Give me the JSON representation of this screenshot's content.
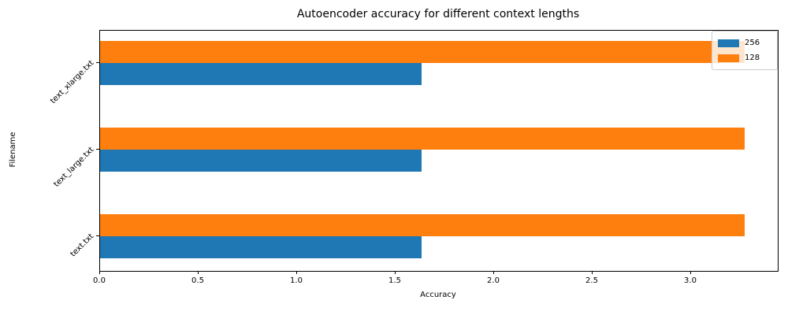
{
  "title": "Autoencoder accuracy for different context lengths",
  "chart_data": {
    "type": "bar",
    "orientation": "horizontal",
    "title": "Autoencoder accuracy for different context lengths",
    "xlabel": "Accuracy",
    "ylabel": "Filename",
    "categories": [
      "text.txt",
      "text_large.txt",
      "text_xlarge.txt"
    ],
    "series": [
      {
        "name": "256",
        "color": "#1f77b4",
        "values": [
          1.63,
          1.63,
          1.63
        ]
      },
      {
        "name": "128",
        "color": "#ff7f0e",
        "values": [
          3.27,
          3.27,
          3.27
        ]
      }
    ],
    "xlim": [
      0,
      3.44
    ],
    "xticks": [
      0.0,
      0.5,
      1.0,
      1.5,
      2.0,
      2.5,
      3.0
    ],
    "xtick_labels": [
      "0.0",
      "0.5",
      "1.0",
      "1.5",
      "2.0",
      "2.5",
      "3.0"
    ],
    "legend_position": "upper right",
    "legend_framealpha": 0.8,
    "grid": false,
    "background_color": "#ffffff"
  }
}
